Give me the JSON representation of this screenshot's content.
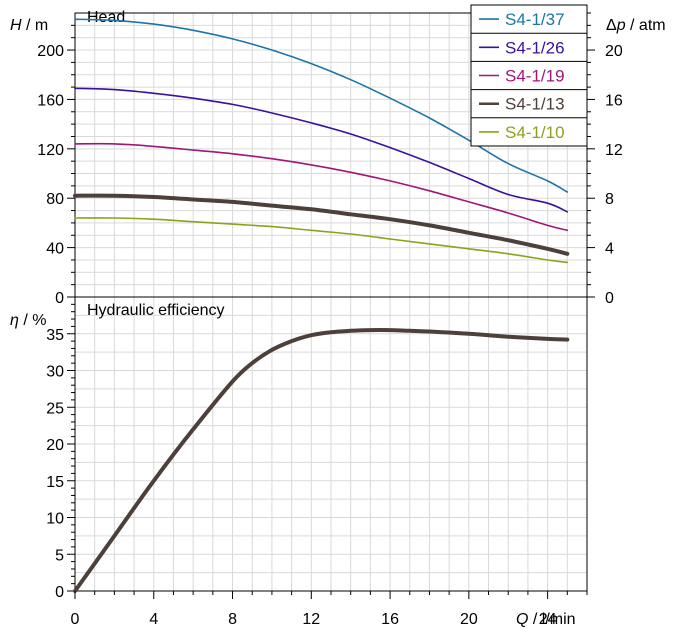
{
  "chart_data": [
    {
      "type": "line",
      "panel": "head",
      "title": "Head",
      "ylabel_symbol": "H",
      "ylabel_unit": " / m",
      "y2label_prefix": "Δ",
      "y2label_symbol": "p",
      "y2label_unit": " / atm",
      "ylim": [
        0,
        230
      ],
      "y2lim": [
        0,
        23
      ],
      "yticks": [
        0,
        40,
        80,
        120,
        160,
        200
      ],
      "y2ticks": [
        0,
        4,
        8,
        12,
        16,
        20
      ],
      "xlim": [
        0,
        26
      ],
      "grid": true,
      "legend_position": "top-right",
      "series": [
        {
          "name": "S4-1/37",
          "color": "#1b76a6",
          "x": [
            0,
            2,
            4,
            6,
            8,
            10,
            12,
            14,
            16,
            18,
            20,
            22,
            24,
            25
          ],
          "y": [
            225,
            224,
            221,
            216,
            209,
            200,
            189,
            176,
            161,
            145,
            127,
            108,
            94,
            85
          ]
        },
        {
          "name": "S4-1/26",
          "color": "#3a109e",
          "x": [
            0,
            2,
            4,
            6,
            8,
            10,
            12,
            14,
            16,
            18,
            20,
            22,
            24,
            25
          ],
          "y": [
            169,
            168,
            165,
            161,
            156,
            149,
            141,
            132,
            121,
            109,
            96,
            83,
            76,
            69
          ]
        },
        {
          "name": "S4-1/19",
          "color": "#a0157a",
          "x": [
            0,
            2,
            4,
            6,
            8,
            10,
            12,
            14,
            16,
            18,
            20,
            22,
            24,
            25
          ],
          "y": [
            124,
            124,
            122,
            119,
            116,
            112,
            107,
            101,
            94,
            86,
            77,
            68,
            58,
            54
          ]
        },
        {
          "name": "S4-1/13",
          "color": "#4d403b",
          "thick": true,
          "x": [
            0,
            2,
            4,
            6,
            8,
            10,
            12,
            14,
            16,
            18,
            20,
            22,
            24,
            25
          ],
          "y": [
            82,
            82,
            81,
            79,
            77,
            74,
            71,
            67,
            63,
            58,
            52,
            46,
            39,
            35
          ]
        },
        {
          "name": "S4-1/10",
          "color": "#8aa31a",
          "x": [
            0,
            2,
            4,
            6,
            8,
            10,
            12,
            14,
            16,
            18,
            20,
            22,
            24,
            25
          ],
          "y": [
            64,
            64,
            63,
            61,
            59,
            57,
            54,
            51,
            47,
            43,
            39,
            35,
            30,
            28
          ]
        }
      ]
    },
    {
      "type": "line",
      "panel": "efficiency",
      "title": "Hydraulic efficiency",
      "ylabel_symbol": "η",
      "ylabel_unit": " / %",
      "xlabel_symbol": "Q",
      "xlabel_unit": " / l/min",
      "ylim": [
        0,
        40
      ],
      "yticks": [
        0,
        5,
        10,
        15,
        20,
        25,
        30,
        35
      ],
      "xlim": [
        0,
        26
      ],
      "xticks": [
        0,
        4,
        8,
        12,
        16,
        20,
        24
      ],
      "grid": true,
      "series": [
        {
          "name": "S4-1/13",
          "color": "#4d403b",
          "thick": true,
          "x": [
            0,
            2,
            4,
            6,
            8,
            9,
            10,
            11,
            12,
            13,
            14,
            15,
            16,
            17,
            18,
            20,
            22,
            24,
            25
          ],
          "y": [
            0,
            7.5,
            15,
            22,
            28.5,
            31,
            32.8,
            34,
            34.8,
            35.2,
            35.4,
            35.5,
            35.5,
            35.4,
            35.3,
            35,
            34.6,
            34.3,
            34.2
          ]
        }
      ]
    }
  ],
  "colors": {
    "axis": "#000000",
    "grid": "#d9d9d9",
    "legend_border": "#000000"
  }
}
